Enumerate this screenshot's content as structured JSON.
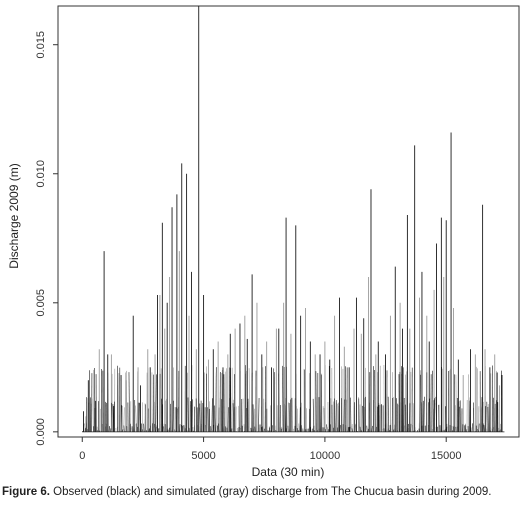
{
  "chart_data": {
    "type": "line",
    "title": "",
    "xlabel": "Data (30 min)",
    "ylabel": "Discharge 2009 (m)",
    "xlim": [
      -1000,
      18000
    ],
    "ylim": [
      -0.0002,
      0.0165
    ],
    "x_ticks": [
      0,
      5000,
      10000,
      15000
    ],
    "x_tick_labels": [
      "0",
      "5000",
      "10000",
      "15000"
    ],
    "y_ticks": [
      0.0,
      0.005,
      0.01,
      0.015
    ],
    "y_tick_labels": [
      "0.000",
      "0.005",
      "0.010",
      "0.015"
    ],
    "grid": false,
    "series": [
      {
        "color": "#1a1a1a",
        "peaks": [
          [
            50,
            0.0008
          ],
          [
            250,
            0.002
          ],
          [
            550,
            0.0012
          ],
          [
            900,
            0.007
          ],
          [
            1050,
            0.003
          ],
          [
            1300,
            0.001
          ],
          [
            1600,
            0.0022
          ],
          [
            2100,
            0.0045
          ],
          [
            2400,
            0.0018
          ],
          [
            2800,
            0.0025
          ],
          [
            3100,
            0.0053
          ],
          [
            3300,
            0.0081
          ],
          [
            3500,
            0.005
          ],
          [
            3700,
            0.0087
          ],
          [
            3900,
            0.0092
          ],
          [
            4100,
            0.0104
          ],
          [
            4300,
            0.01
          ],
          [
            4500,
            0.0062
          ],
          [
            4800,
            0.0165
          ],
          [
            5000,
            0.0053
          ],
          [
            5400,
            0.0032
          ],
          [
            5800,
            0.0025
          ],
          [
            6100,
            0.0038
          ],
          [
            6500,
            0.0042
          ],
          [
            6800,
            0.0036
          ],
          [
            7000,
            0.0061
          ],
          [
            7400,
            0.003
          ],
          [
            7800,
            0.0025
          ],
          [
            8100,
            0.004
          ],
          [
            8400,
            0.0083
          ],
          [
            8800,
            0.008
          ],
          [
            9000,
            0.0045
          ],
          [
            9400,
            0.0035
          ],
          [
            9800,
            0.003
          ],
          [
            10200,
            0.0028
          ],
          [
            10600,
            0.0052
          ],
          [
            11000,
            0.0025
          ],
          [
            11300,
            0.0052
          ],
          [
            11600,
            0.0044
          ],
          [
            11900,
            0.0094
          ],
          [
            12200,
            0.0035
          ],
          [
            12500,
            0.003
          ],
          [
            12900,
            0.0064
          ],
          [
            13200,
            0.004
          ],
          [
            13400,
            0.0084
          ],
          [
            13700,
            0.0111
          ],
          [
            14000,
            0.0062
          ],
          [
            14300,
            0.0035
          ],
          [
            14600,
            0.0073
          ],
          [
            14800,
            0.0083
          ],
          [
            15000,
            0.0082
          ],
          [
            15200,
            0.0116
          ],
          [
            15500,
            0.0028
          ],
          [
            16000,
            0.0032
          ],
          [
            16500,
            0.0088
          ],
          [
            16800,
            0.0025
          ],
          [
            17100,
            0.0023
          ],
          [
            17300,
            0.0022
          ]
        ]
      },
      {
        "color": "#9a9a9a",
        "peaks": [
          [
            150,
            0.0006
          ],
          [
            700,
            0.0032
          ],
          [
            1200,
            0.003
          ],
          [
            1800,
            0.002
          ],
          [
            2300,
            0.0025
          ],
          [
            2700,
            0.0032
          ],
          [
            3000,
            0.003
          ],
          [
            3200,
            0.0053
          ],
          [
            3400,
            0.004
          ],
          [
            3600,
            0.006
          ],
          [
            4000,
            0.007
          ],
          [
            4400,
            0.0045
          ],
          [
            4700,
            0.0032
          ],
          [
            5200,
            0.0028
          ],
          [
            5600,
            0.0035
          ],
          [
            6000,
            0.003
          ],
          [
            6300,
            0.004
          ],
          [
            6700,
            0.0045
          ],
          [
            7200,
            0.005
          ],
          [
            7600,
            0.0035
          ],
          [
            8000,
            0.004
          ],
          [
            8300,
            0.005
          ],
          [
            8600,
            0.0038
          ],
          [
            9200,
            0.0048
          ],
          [
            9600,
            0.003
          ],
          [
            10000,
            0.0035
          ],
          [
            10400,
            0.0045
          ],
          [
            10800,
            0.0033
          ],
          [
            11200,
            0.004
          ],
          [
            11500,
            0.0038
          ],
          [
            11800,
            0.006
          ],
          [
            12100,
            0.003
          ],
          [
            12700,
            0.0045
          ],
          [
            13100,
            0.005
          ],
          [
            13500,
            0.004
          ],
          [
            13900,
            0.0052
          ],
          [
            14200,
            0.0045
          ],
          [
            14500,
            0.0055
          ],
          [
            14900,
            0.006
          ],
          [
            15300,
            0.0048
          ],
          [
            15700,
            0.0022
          ],
          [
            16200,
            0.003
          ],
          [
            16600,
            0.0032
          ],
          [
            17000,
            0.003
          ],
          [
            17200,
            0.0018
          ]
        ]
      }
    ]
  },
  "caption": {
    "label": "Figure 6.",
    "text": " Observed (black) and simulated (gray) discharge from The Chucua basin during 2009."
  }
}
